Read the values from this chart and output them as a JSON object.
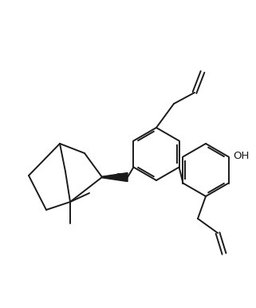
{
  "bg_color": "#ffffff",
  "line_color": "#1a1a1a",
  "line_width": 1.4,
  "figsize": [
    3.21,
    3.86
  ],
  "dpi": 100,
  "oh_label": "OH",
  "o_label": "O"
}
